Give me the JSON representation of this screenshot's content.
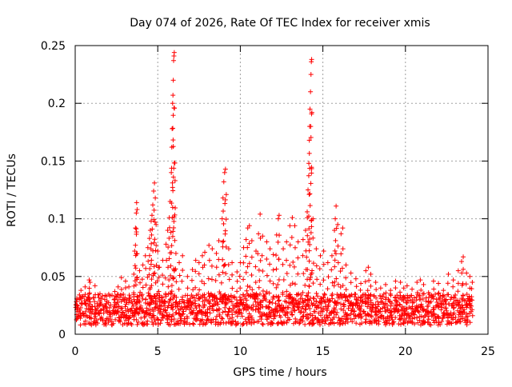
{
  "chart_data": {
    "type": "scatter",
    "title": "Day 074 of 2026, Rate Of TEC Index for receiver xmis",
    "xlabel": "GPS time / hours",
    "ylabel": "ROTI / TECUs",
    "xlim": [
      0,
      25
    ],
    "ylim": [
      0,
      0.25
    ],
    "xticks": [
      0,
      5,
      10,
      15,
      20,
      25
    ],
    "xtick_labels": [
      "0",
      "5",
      "10",
      "15",
      "20",
      "25"
    ],
    "yticks": [
      0,
      0.05,
      0.1,
      0.15,
      0.2,
      0.25
    ],
    "ytick_labels": [
      "0",
      "0.05",
      "0.1",
      "0.15",
      "0.2",
      "0.25"
    ],
    "grid": true,
    "marker": "+",
    "marker_color": "#ff0000",
    "baseline_band": [
      0.008,
      0.035
    ],
    "burst_points": [
      [
        0.1,
        0.031
      ],
      [
        0.35,
        0.038
      ],
      [
        0.6,
        0.041
      ],
      [
        0.85,
        0.047
      ],
      [
        0.9,
        0.045
      ],
      [
        1.2,
        0.042
      ],
      [
        1.5,
        0.035
      ],
      [
        1.9,
        0.033
      ],
      [
        2.4,
        0.037
      ],
      [
        2.6,
        0.041
      ],
      [
        2.8,
        0.049
      ],
      [
        3.05,
        0.046
      ],
      [
        3.25,
        0.041
      ],
      [
        3.55,
        0.052
      ],
      [
        3.6,
        0.072
      ],
      [
        3.65,
        0.092
      ],
      [
        3.7,
        0.105
      ],
      [
        3.72,
        0.114
      ],
      [
        3.75,
        0.108
      ],
      [
        3.9,
        0.055
      ],
      [
        4.1,
        0.06
      ],
      [
        4.25,
        0.068
      ],
      [
        4.4,
        0.075
      ],
      [
        4.5,
        0.083
      ],
      [
        4.55,
        0.09
      ],
      [
        4.6,
        0.098
      ],
      [
        4.65,
        0.103
      ],
      [
        4.7,
        0.112
      ],
      [
        4.75,
        0.124
      ],
      [
        4.8,
        0.131
      ],
      [
        4.85,
        0.118
      ],
      [
        4.9,
        0.095
      ],
      [
        5.0,
        0.072
      ],
      [
        5.1,
        0.058
      ],
      [
        5.3,
        0.064
      ],
      [
        5.5,
        0.078
      ],
      [
        5.6,
        0.09
      ],
      [
        5.7,
        0.101
      ],
      [
        5.75,
        0.115
      ],
      [
        5.82,
        0.14
      ],
      [
        5.85,
        0.162
      ],
      [
        5.87,
        0.178
      ],
      [
        5.9,
        0.2
      ],
      [
        5.92,
        0.207
      ],
      [
        5.94,
        0.22
      ],
      [
        5.96,
        0.237
      ],
      [
        5.98,
        0.241
      ],
      [
        6.0,
        0.244
      ],
      [
        6.05,
        0.133
      ],
      [
        6.1,
        0.07
      ],
      [
        6.3,
        0.062
      ],
      [
        6.5,
        0.068
      ],
      [
        6.8,
        0.05
      ],
      [
        7.1,
        0.056
      ],
      [
        7.3,
        0.064
      ],
      [
        7.5,
        0.062
      ],
      [
        7.7,
        0.068
      ],
      [
        7.85,
        0.071
      ],
      [
        8.1,
        0.077
      ],
      [
        8.3,
        0.074
      ],
      [
        8.55,
        0.07
      ],
      [
        8.7,
        0.081
      ],
      [
        8.9,
        0.1
      ],
      [
        8.95,
        0.118
      ],
      [
        9.0,
        0.132
      ],
      [
        9.05,
        0.14
      ],
      [
        9.1,
        0.143
      ],
      [
        9.15,
        0.121
      ],
      [
        9.3,
        0.074
      ],
      [
        9.5,
        0.062
      ],
      [
        9.8,
        0.054
      ],
      [
        10.0,
        0.062
      ],
      [
        10.2,
        0.075
      ],
      [
        10.35,
        0.082
      ],
      [
        10.45,
        0.092
      ],
      [
        10.55,
        0.094
      ],
      [
        10.7,
        0.081
      ],
      [
        10.95,
        0.072
      ],
      [
        11.1,
        0.087
      ],
      [
        11.2,
        0.104
      ],
      [
        11.35,
        0.085
      ],
      [
        11.6,
        0.08
      ],
      [
        11.8,
        0.074
      ],
      [
        12.0,
        0.069
      ],
      [
        12.2,
        0.086
      ],
      [
        12.3,
        0.1
      ],
      [
        12.35,
        0.103
      ],
      [
        12.6,
        0.074
      ],
      [
        12.8,
        0.08
      ],
      [
        13.0,
        0.094
      ],
      [
        13.15,
        0.101
      ],
      [
        13.3,
        0.094
      ],
      [
        13.5,
        0.08
      ],
      [
        13.8,
        0.082
      ],
      [
        13.95,
        0.09
      ],
      [
        14.05,
        0.106
      ],
      [
        14.1,
        0.125
      ],
      [
        14.15,
        0.148
      ],
      [
        14.18,
        0.168
      ],
      [
        14.2,
        0.18
      ],
      [
        14.22,
        0.195
      ],
      [
        14.25,
        0.21
      ],
      [
        14.28,
        0.225
      ],
      [
        14.3,
        0.236
      ],
      [
        14.32,
        0.238
      ],
      [
        14.4,
        0.1
      ],
      [
        14.6,
        0.074
      ],
      [
        14.85,
        0.068
      ],
      [
        15.05,
        0.072
      ],
      [
        15.3,
        0.062
      ],
      [
        15.55,
        0.068
      ],
      [
        15.7,
        0.09
      ],
      [
        15.75,
        0.1
      ],
      [
        15.8,
        0.111
      ],
      [
        15.9,
        0.095
      ],
      [
        16.1,
        0.087
      ],
      [
        16.2,
        0.092
      ],
      [
        16.4,
        0.06
      ],
      [
        16.7,
        0.053
      ],
      [
        17.0,
        0.048
      ],
      [
        17.3,
        0.044
      ],
      [
        17.6,
        0.055
      ],
      [
        17.75,
        0.058
      ],
      [
        17.9,
        0.052
      ],
      [
        18.2,
        0.045
      ],
      [
        18.5,
        0.04
      ],
      [
        18.8,
        0.043
      ],
      [
        19.1,
        0.038
      ],
      [
        19.4,
        0.046
      ],
      [
        19.7,
        0.045
      ],
      [
        19.9,
        0.04
      ],
      [
        20.1,
        0.042
      ],
      [
        20.4,
        0.039
      ],
      [
        20.7,
        0.045
      ],
      [
        20.9,
        0.047
      ],
      [
        21.1,
        0.043
      ],
      [
        21.4,
        0.036
      ],
      [
        21.7,
        0.046
      ],
      [
        22.0,
        0.044
      ],
      [
        22.3,
        0.038
      ],
      [
        22.6,
        0.052
      ],
      [
        22.9,
        0.047
      ],
      [
        23.2,
        0.055
      ],
      [
        23.4,
        0.063
      ],
      [
        23.5,
        0.067
      ],
      [
        23.7,
        0.053
      ],
      [
        23.9,
        0.05
      ],
      [
        24.05,
        0.045
      ]
    ]
  }
}
